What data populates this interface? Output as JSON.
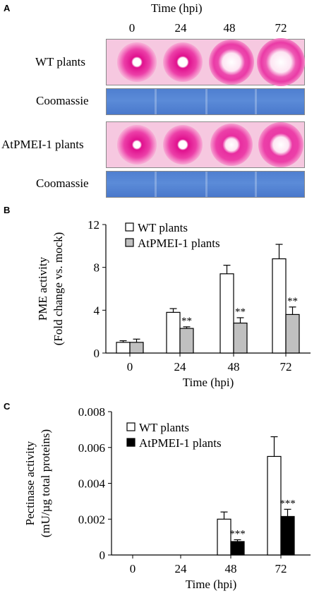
{
  "panel_a": {
    "letter": "A",
    "time_label": "Time (hpi)",
    "timepoints": [
      "0",
      "24",
      "48",
      "72"
    ],
    "rows": [
      {
        "label": "WT plants",
        "type": "activity-gel"
      },
      {
        "label": "Coomassie",
        "type": "coomassie"
      },
      {
        "label": "AtPMEI-1 plants",
        "type": "activity-gel"
      },
      {
        "label": "Coomassie",
        "type": "coomassie"
      }
    ],
    "colors": {
      "gel_background": "#f6c8e0",
      "halo": "#e8189a",
      "coomassie": "#5585d4"
    }
  },
  "panel_b": {
    "letter": "B",
    "chart_data": {
      "type": "bar",
      "categories": [
        "0",
        "24",
        "48",
        "72"
      ],
      "xlabel": "Time (hpi)",
      "ylabel": [
        "PME activity",
        "(Fold change vs. mock)"
      ],
      "ylim": [
        0,
        12
      ],
      "yticks": [
        "0",
        "4",
        "8",
        "12"
      ],
      "series": [
        {
          "name": "WT plants",
          "color": "#ffffff",
          "values": [
            1.0,
            3.8,
            7.4,
            8.8
          ],
          "errors": [
            0.15,
            0.35,
            0.8,
            1.35
          ]
        },
        {
          "name": "AtPMEI-1 plants",
          "color": "#c0c0c0",
          "values": [
            1.0,
            2.3,
            2.8,
            3.6
          ],
          "errors": [
            0.3,
            0.15,
            0.5,
            0.7
          ]
        }
      ],
      "annotations": [
        "",
        "**",
        "**",
        "**"
      ],
      "legend": "top-left"
    }
  },
  "panel_c": {
    "letter": "C",
    "chart_data": {
      "type": "bar",
      "categories": [
        "0",
        "24",
        "48",
        "72"
      ],
      "xlabel": "Time (hpi)",
      "ylabel": [
        "Pectinase activity",
        "(mU/µg total proteins)"
      ],
      "ylim": [
        0,
        0.008
      ],
      "yticks": [
        "0",
        "0.002",
        "0.004",
        "0.006",
        "0.008"
      ],
      "series": [
        {
          "name": "WT plants",
          "color": "#ffffff",
          "values": [
            0,
            0,
            0.002,
            0.0055
          ],
          "errors": [
            0,
            0,
            0.0004,
            0.0011
          ]
        },
        {
          "name": "AtPMEI-1 plants",
          "color": "#000000",
          "values": [
            0,
            0,
            0.00075,
            0.00215
          ],
          "errors": [
            0,
            0,
            0.0001,
            0.0004
          ]
        }
      ],
      "annotations": [
        "",
        "",
        "***",
        "***"
      ],
      "legend": "top-left"
    }
  }
}
